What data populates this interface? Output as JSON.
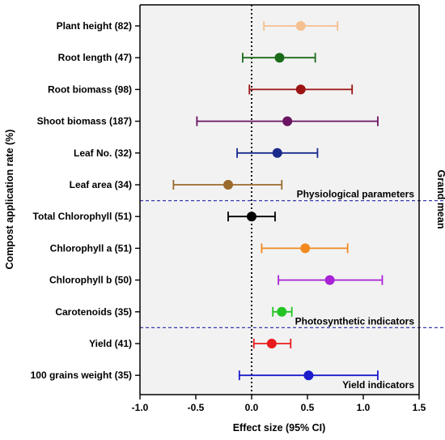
{
  "chart_data": {
    "type": "forest",
    "xlabel": "Effect size (95% CI)",
    "ylabel": "Compost application rate (%)",
    "right_label": "Grand mean",
    "xlim": [
      -1.0,
      1.5
    ],
    "xticks": [
      "-1.0",
      "-0.5",
      "0.0",
      "0.5",
      "1.0",
      "1.5"
    ],
    "xtick_values": [
      -1.0,
      -0.5,
      0.0,
      0.5,
      1.0,
      1.5
    ],
    "reference_line": 0,
    "background": "#f2f2f2",
    "separator_color": "#3a3aad",
    "rows": [
      {
        "label": "Plant height (82)",
        "mean": 0.44,
        "lower": 0.11,
        "upper": 0.77,
        "color": "#f5c08f"
      },
      {
        "label": "Root length (47)",
        "mean": 0.25,
        "lower": -0.08,
        "upper": 0.57,
        "color": "#1a6b1a"
      },
      {
        "label": "Root biomass (98)",
        "mean": 0.44,
        "lower": -0.02,
        "upper": 0.9,
        "color": "#9c1313"
      },
      {
        "label": "Shoot biomass (187)",
        "mean": 0.32,
        "lower": -0.49,
        "upper": 1.13,
        "color": "#6b1462"
      },
      {
        "label": "Leaf No. (32)",
        "mean": 0.23,
        "lower": -0.13,
        "upper": 0.59,
        "color": "#1a2a8c"
      },
      {
        "label": "Leaf area (34)",
        "mean": -0.21,
        "lower": -0.7,
        "upper": 0.27,
        "color": "#9a6a2c"
      },
      {
        "label": "Total Chlorophyll (51)",
        "mean": 0.0,
        "lower": -0.21,
        "upper": 0.21,
        "color": "#000000"
      },
      {
        "label": "Chlorophyll a (51)",
        "mean": 0.48,
        "lower": 0.09,
        "upper": 0.86,
        "color": "#f28a20"
      },
      {
        "label": "Chlorophyll b (50)",
        "mean": 0.7,
        "lower": 0.24,
        "upper": 1.17,
        "color": "#a822d6"
      },
      {
        "label": "Carotenoids (35)",
        "mean": 0.27,
        "lower": 0.19,
        "upper": 0.36,
        "color": "#23c423"
      },
      {
        "label": "Yield (41)",
        "mean": 0.18,
        "lower": 0.02,
        "upper": 0.35,
        "color": "#e81c1c"
      },
      {
        "label": "100 grains weight (35)",
        "mean": 0.51,
        "lower": -0.11,
        "upper": 1.13,
        "color": "#1c1ccc"
      }
    ],
    "groups": [
      {
        "label": "Physiological parameters",
        "after_row": 5
      },
      {
        "label": "Photosynthetic indicators",
        "after_row": 9
      },
      {
        "label": "Yield indicators",
        "after_row": 11
      }
    ]
  }
}
